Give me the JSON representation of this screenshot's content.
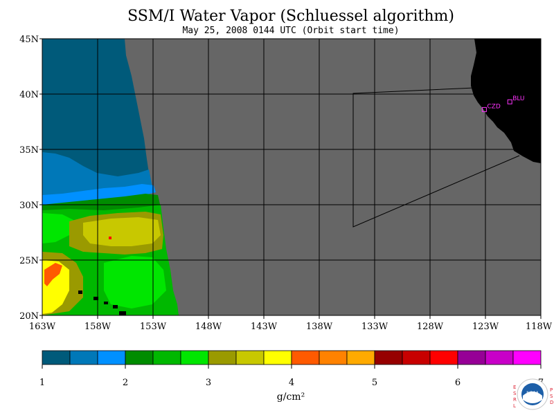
{
  "title": "SSM/I Water Vapor (Schluessel algorithm)",
  "subtitle": "May 25, 2008  0144 UTC  (Orbit start time)",
  "map": {
    "lon_range": [
      -163,
      -118
    ],
    "lat_range": [
      20,
      45
    ],
    "lon_ticks": [
      "163W",
      "158W",
      "153W",
      "148W",
      "143W",
      "138W",
      "133W",
      "128W",
      "123W",
      "118W"
    ],
    "lat_ticks": [
      "45N",
      "40N",
      "35N",
      "30N",
      "25N",
      "20N"
    ],
    "no_data_color": "#666666",
    "land_color": "#000000",
    "stations": [
      {
        "label": "CZD",
        "lon": -123.1,
        "lat": 38.6
      },
      {
        "label": "BLU",
        "lon": -120.8,
        "lat": 39.3
      }
    ]
  },
  "colorbar": {
    "min": 1,
    "max": 7,
    "tick_labels": [
      "1",
      "2",
      "3",
      "4",
      "5",
      "6",
      "7"
    ],
    "units": "g/cm²",
    "colors": [
      "#005a7a",
      "#0078b8",
      "#0090ff",
      "#008c00",
      "#00b800",
      "#00e600",
      "#9a9a00",
      "#c8c800",
      "#ffff00",
      "#ff5a00",
      "#ff8200",
      "#ffaa00",
      "#960000",
      "#c80000",
      "#ff0000",
      "#960096",
      "#c800c8",
      "#ff00ff"
    ]
  },
  "logo": {
    "left_text": "ESRL",
    "right_text": "PSD",
    "center_text": "NOAA"
  }
}
